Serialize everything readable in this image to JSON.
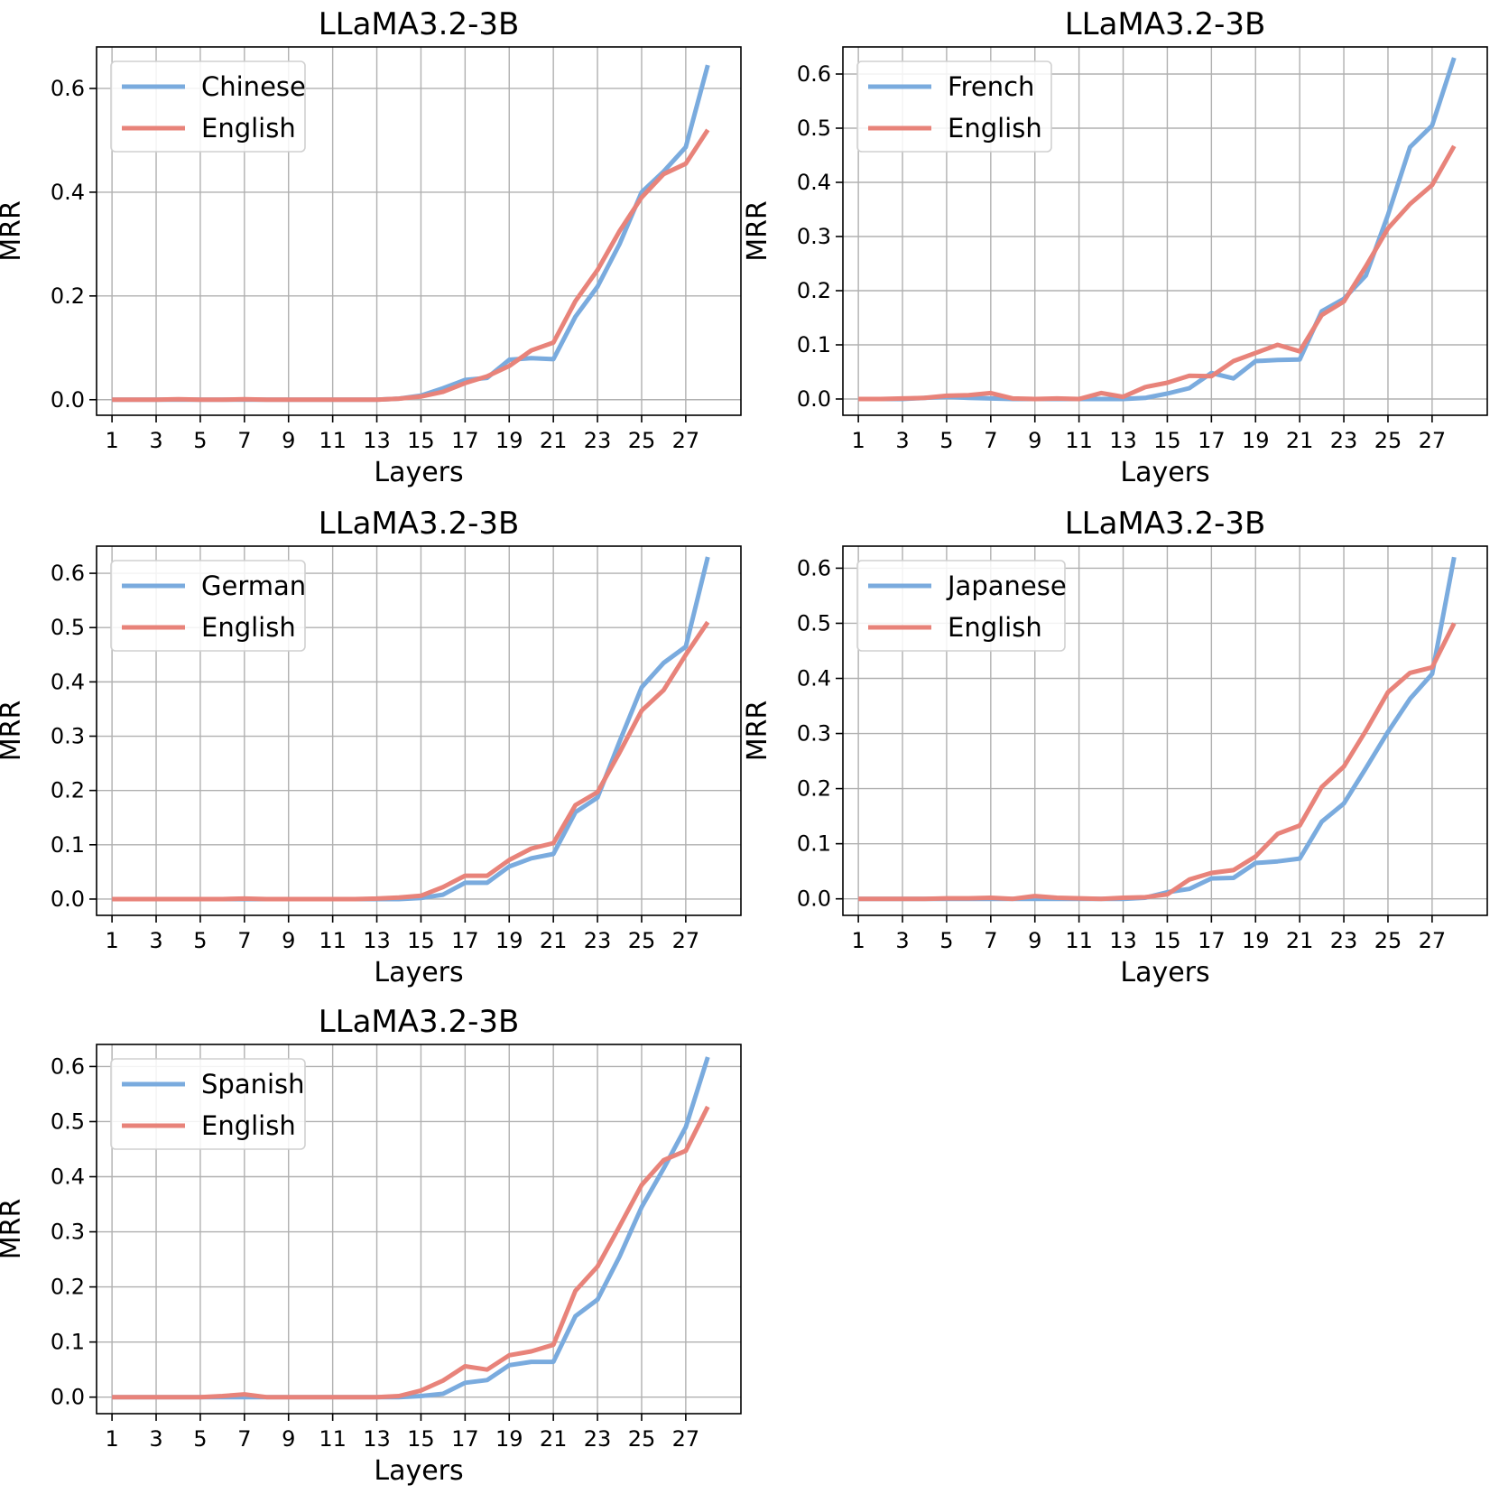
{
  "chart_data": [
    {
      "type": "line",
      "title": "LLaMA3.2-3B",
      "xlabel": "Layers",
      "ylabel": "MRR",
      "x": [
        1,
        2,
        3,
        4,
        5,
        6,
        7,
        8,
        9,
        10,
        11,
        12,
        13,
        14,
        15,
        16,
        17,
        18,
        19,
        20,
        21,
        22,
        23,
        24,
        25,
        26,
        27,
        28
      ],
      "xticks": [
        1,
        3,
        5,
        7,
        9,
        11,
        13,
        15,
        17,
        19,
        21,
        23,
        25,
        27
      ],
      "yticks": [
        0.0,
        0.2,
        0.4,
        0.6
      ],
      "ylim": [
        -0.03,
        0.68
      ],
      "grid": true,
      "legend": "top-left",
      "series": [
        {
          "name": "Chinese",
          "color": "#7aabde",
          "values": [
            0.0,
            0.0,
            0.0,
            0.0,
            0.0,
            0.0,
            0.0,
            0.0,
            0.0,
            0.0,
            0.0,
            0.0,
            0.0,
            0.002,
            0.008,
            0.022,
            0.038,
            0.042,
            0.077,
            0.08,
            0.078,
            0.16,
            0.218,
            0.3,
            0.4,
            0.44,
            0.487,
            0.645
          ]
        },
        {
          "name": "English",
          "color": "#e8837a",
          "values": [
            0.0,
            0.0,
            0.0,
            0.001,
            0.0,
            0.0,
            0.001,
            0.0,
            0.0,
            0.0,
            0.0,
            0.0,
            0.0,
            0.002,
            0.006,
            0.015,
            0.032,
            0.045,
            0.065,
            0.095,
            0.11,
            0.19,
            0.25,
            0.325,
            0.39,
            0.435,
            0.455,
            0.52
          ]
        }
      ]
    },
    {
      "type": "line",
      "title": "LLaMA3.2-3B",
      "xlabel": "Layers",
      "ylabel": "MRR",
      "x": [
        1,
        2,
        3,
        4,
        5,
        6,
        7,
        8,
        9,
        10,
        11,
        12,
        13,
        14,
        15,
        16,
        17,
        18,
        19,
        20,
        21,
        22,
        23,
        24,
        25,
        26,
        27,
        28
      ],
      "xticks": [
        1,
        3,
        5,
        7,
        9,
        11,
        13,
        15,
        17,
        19,
        21,
        23,
        25,
        27
      ],
      "yticks": [
        0.0,
        0.1,
        0.2,
        0.3,
        0.4,
        0.5,
        0.6
      ],
      "ylim": [
        -0.03,
        0.65
      ],
      "grid": true,
      "legend": "top-left",
      "series": [
        {
          "name": "French",
          "color": "#7aabde",
          "values": [
            0.0,
            0.0,
            0.0,
            0.002,
            0.004,
            0.002,
            0.001,
            0.0,
            0.0,
            0.0,
            0.0,
            0.0,
            0.0,
            0.002,
            0.01,
            0.02,
            0.048,
            0.038,
            0.07,
            0.072,
            0.073,
            0.162,
            0.185,
            0.228,
            0.34,
            0.465,
            0.505,
            0.63
          ]
        },
        {
          "name": "English",
          "color": "#e8837a",
          "values": [
            0.0,
            0.0,
            0.001,
            0.002,
            0.006,
            0.007,
            0.011,
            0.001,
            0.0,
            0.001,
            0.0,
            0.011,
            0.004,
            0.022,
            0.03,
            0.043,
            0.042,
            0.07,
            0.085,
            0.1,
            0.088,
            0.155,
            0.18,
            0.245,
            0.315,
            0.36,
            0.395,
            0.467
          ]
        }
      ]
    },
    {
      "type": "line",
      "title": "LLaMA3.2-3B",
      "xlabel": "Layers",
      "ylabel": "MRR",
      "x": [
        1,
        2,
        3,
        4,
        5,
        6,
        7,
        8,
        9,
        10,
        11,
        12,
        13,
        14,
        15,
        16,
        17,
        18,
        19,
        20,
        21,
        22,
        23,
        24,
        25,
        26,
        27,
        28
      ],
      "xticks": [
        1,
        3,
        5,
        7,
        9,
        11,
        13,
        15,
        17,
        19,
        21,
        23,
        25,
        27
      ],
      "yticks": [
        0.0,
        0.1,
        0.2,
        0.3,
        0.4,
        0.5,
        0.6
      ],
      "ylim": [
        -0.03,
        0.65
      ],
      "grid": true,
      "legend": "top-left",
      "series": [
        {
          "name": "German",
          "color": "#7aabde",
          "values": [
            0.0,
            0.0,
            0.0,
            0.0,
            0.0,
            0.0,
            0.0,
            0.0,
            0.0,
            0.0,
            0.0,
            0.0,
            0.0,
            0.0,
            0.002,
            0.008,
            0.03,
            0.03,
            0.06,
            0.075,
            0.083,
            0.16,
            0.187,
            0.29,
            0.39,
            0.435,
            0.465,
            0.63
          ]
        },
        {
          "name": "English",
          "color": "#e8837a",
          "values": [
            0.0,
            0.0,
            0.0,
            0.0,
            0.0,
            0.0,
            0.001,
            0.0,
            0.0,
            0.0,
            0.0,
            0.0,
            0.001,
            0.003,
            0.006,
            0.022,
            0.043,
            0.043,
            0.072,
            0.093,
            0.103,
            0.173,
            0.197,
            0.27,
            0.347,
            0.385,
            0.45,
            0.51
          ]
        }
      ]
    },
    {
      "type": "line",
      "title": "LLaMA3.2-3B",
      "xlabel": "Layers",
      "ylabel": "MRR",
      "x": [
        1,
        2,
        3,
        4,
        5,
        6,
        7,
        8,
        9,
        10,
        11,
        12,
        13,
        14,
        15,
        16,
        17,
        18,
        19,
        20,
        21,
        22,
        23,
        24,
        25,
        26,
        27,
        28
      ],
      "xticks": [
        1,
        3,
        5,
        7,
        9,
        11,
        13,
        15,
        17,
        19,
        21,
        23,
        25,
        27
      ],
      "yticks": [
        0.0,
        0.1,
        0.2,
        0.3,
        0.4,
        0.5,
        0.6
      ],
      "ylim": [
        -0.03,
        0.64
      ],
      "grid": true,
      "legend": "top-left",
      "series": [
        {
          "name": "Japanese",
          "color": "#7aabde",
          "values": [
            0.0,
            0.0,
            0.0,
            0.0,
            0.0,
            0.0,
            0.0,
            0.0,
            0.0,
            0.0,
            0.0,
            0.0,
            0.0,
            0.002,
            0.012,
            0.018,
            0.037,
            0.038,
            0.065,
            0.068,
            0.073,
            0.14,
            0.173,
            0.237,
            0.303,
            0.363,
            0.408,
            0.62
          ]
        },
        {
          "name": "English",
          "color": "#e8837a",
          "values": [
            0.0,
            0.0,
            0.0,
            0.0,
            0.001,
            0.001,
            0.002,
            0.0,
            0.005,
            0.002,
            0.001,
            0.0,
            0.002,
            0.003,
            0.008,
            0.035,
            0.047,
            0.052,
            0.077,
            0.118,
            0.133,
            0.203,
            0.24,
            0.305,
            0.375,
            0.41,
            0.42,
            0.5
          ]
        }
      ]
    },
    {
      "type": "line",
      "title": "LLaMA3.2-3B",
      "xlabel": "Layers",
      "ylabel": "MRR",
      "x": [
        1,
        2,
        3,
        4,
        5,
        6,
        7,
        8,
        9,
        10,
        11,
        12,
        13,
        14,
        15,
        16,
        17,
        18,
        19,
        20,
        21,
        22,
        23,
        24,
        25,
        26,
        27,
        28
      ],
      "xticks": [
        1,
        3,
        5,
        7,
        9,
        11,
        13,
        15,
        17,
        19,
        21,
        23,
        25,
        27
      ],
      "yticks": [
        0.0,
        0.1,
        0.2,
        0.3,
        0.4,
        0.5,
        0.6
      ],
      "ylim": [
        -0.03,
        0.64
      ],
      "grid": true,
      "legend": "top-left",
      "series": [
        {
          "name": "Spanish",
          "color": "#7aabde",
          "values": [
            0.0,
            0.0,
            0.0,
            0.0,
            0.0,
            0.0,
            0.0,
            0.0,
            0.0,
            0.0,
            0.0,
            0.0,
            0.0,
            0.0,
            0.002,
            0.006,
            0.026,
            0.031,
            0.058,
            0.064,
            0.064,
            0.147,
            0.177,
            0.255,
            0.345,
            0.415,
            0.49,
            0.617
          ]
        },
        {
          "name": "English",
          "color": "#e8837a",
          "values": [
            0.0,
            0.0,
            0.0,
            0.0,
            0.0,
            0.002,
            0.005,
            0.0,
            0.0,
            0.0,
            0.0,
            0.0,
            0.0,
            0.002,
            0.012,
            0.03,
            0.056,
            0.05,
            0.076,
            0.083,
            0.095,
            0.193,
            0.237,
            0.31,
            0.385,
            0.43,
            0.447,
            0.527
          ]
        }
      ]
    }
  ]
}
